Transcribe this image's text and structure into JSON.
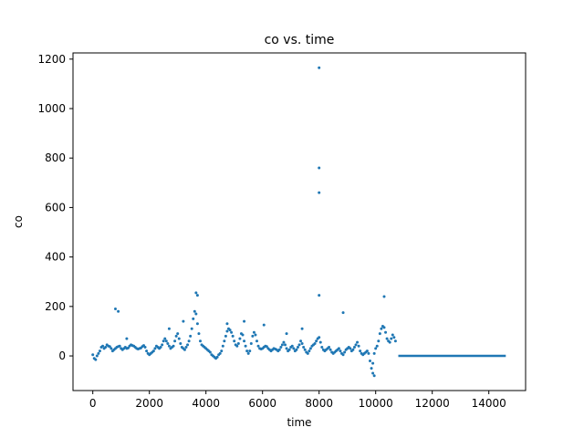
{
  "chart_data": {
    "type": "scatter",
    "title": "co vs. time",
    "xlabel": "time",
    "ylabel": "co",
    "xlim": [
      -700,
      15300
    ],
    "ylim": [
      -140,
      1225
    ],
    "x_ticks": [
      0,
      2000,
      4000,
      6000,
      8000,
      10000,
      12000,
      14000
    ],
    "y_ticks": [
      0,
      200,
      400,
      600,
      800,
      1000,
      1200
    ],
    "grid": false,
    "legend": "none",
    "marker_color": "#1f77b4",
    "series": [
      {
        "values": [
          [
            0,
            5
          ],
          [
            50,
            -10
          ],
          [
            100,
            -15
          ],
          [
            150,
            0
          ],
          [
            200,
            10
          ],
          [
            250,
            20
          ],
          [
            300,
            35
          ],
          [
            350,
            40
          ],
          [
            400,
            30
          ],
          [
            450,
            35
          ],
          [
            500,
            45
          ],
          [
            550,
            40
          ],
          [
            600,
            38
          ],
          [
            650,
            30
          ],
          [
            700,
            20
          ],
          [
            750,
            25
          ],
          [
            800,
            30
          ],
          [
            850,
            35
          ],
          [
            900,
            38
          ],
          [
            950,
            40
          ],
          [
            1000,
            30
          ],
          [
            1050,
            25
          ],
          [
            1100,
            30
          ],
          [
            1150,
            35
          ],
          [
            1200,
            30
          ],
          [
            1250,
            32
          ],
          [
            1300,
            40
          ],
          [
            1350,
            45
          ],
          [
            1400,
            42
          ],
          [
            1450,
            40
          ],
          [
            1500,
            35
          ],
          [
            1550,
            30
          ],
          [
            1600,
            28
          ],
          [
            1650,
            30
          ],
          [
            1700,
            32
          ],
          [
            1750,
            38
          ],
          [
            1800,
            42
          ],
          [
            1850,
            35
          ],
          [
            1900,
            20
          ],
          [
            1950,
            10
          ],
          [
            2000,
            5
          ],
          [
            2050,
            10
          ],
          [
            2100,
            15
          ],
          [
            2150,
            20
          ],
          [
            2200,
            30
          ],
          [
            2250,
            40
          ],
          [
            2300,
            35
          ],
          [
            2350,
            30
          ],
          [
            2400,
            35
          ],
          [
            2450,
            45
          ],
          [
            2500,
            60
          ],
          [
            2550,
            70
          ],
          [
            2600,
            60
          ],
          [
            2650,
            50
          ],
          [
            2700,
            40
          ],
          [
            2750,
            30
          ],
          [
            2800,
            35
          ],
          [
            2850,
            40
          ],
          [
            2900,
            60
          ],
          [
            2950,
            80
          ],
          [
            3000,
            90
          ],
          [
            3050,
            70
          ],
          [
            3100,
            50
          ],
          [
            3150,
            35
          ],
          [
            3200,
            30
          ],
          [
            3250,
            25
          ],
          [
            3300,
            35
          ],
          [
            3350,
            45
          ],
          [
            3400,
            60
          ],
          [
            3450,
            80
          ],
          [
            3500,
            110
          ],
          [
            3550,
            150
          ],
          [
            3600,
            180
          ],
          [
            3650,
            170
          ],
          [
            3700,
            130
          ],
          [
            3750,
            90
          ],
          [
            3800,
            60
          ],
          [
            3850,
            45
          ],
          [
            3900,
            40
          ],
          [
            3950,
            35
          ],
          [
            4000,
            30
          ],
          [
            4050,
            25
          ],
          [
            4100,
            20
          ],
          [
            4150,
            15
          ],
          [
            4200,
            5
          ],
          [
            4250,
            0
          ],
          [
            4300,
            -5
          ],
          [
            4350,
            -10
          ],
          [
            4400,
            -5
          ],
          [
            4450,
            5
          ],
          [
            4500,
            10
          ],
          [
            4550,
            20
          ],
          [
            4600,
            40
          ],
          [
            4650,
            60
          ],
          [
            4700,
            80
          ],
          [
            4750,
            100
          ],
          [
            4800,
            110
          ],
          [
            4850,
            105
          ],
          [
            4900,
            95
          ],
          [
            4950,
            80
          ],
          [
            5000,
            60
          ],
          [
            5050,
            45
          ],
          [
            5100,
            40
          ],
          [
            5150,
            50
          ],
          [
            5200,
            70
          ],
          [
            5250,
            90
          ],
          [
            5300,
            85
          ],
          [
            5350,
            60
          ],
          [
            5400,
            40
          ],
          [
            5450,
            20
          ],
          [
            5500,
            10
          ],
          [
            5550,
            20
          ],
          [
            5600,
            50
          ],
          [
            5650,
            80
          ],
          [
            5700,
            95
          ],
          [
            5750,
            85
          ],
          [
            5800,
            60
          ],
          [
            5850,
            40
          ],
          [
            5900,
            30
          ],
          [
            5950,
            28
          ],
          [
            6000,
            30
          ],
          [
            6050,
            35
          ],
          [
            6100,
            40
          ],
          [
            6150,
            38
          ],
          [
            6200,
            30
          ],
          [
            6250,
            25
          ],
          [
            6300,
            20
          ],
          [
            6350,
            25
          ],
          [
            6400,
            30
          ],
          [
            6450,
            28
          ],
          [
            6500,
            25
          ],
          [
            6550,
            20
          ],
          [
            6600,
            25
          ],
          [
            6650,
            35
          ],
          [
            6700,
            45
          ],
          [
            6750,
            55
          ],
          [
            6800,
            45
          ],
          [
            6850,
            30
          ],
          [
            6900,
            20
          ],
          [
            6950,
            25
          ],
          [
            7000,
            35
          ],
          [
            7050,
            40
          ],
          [
            7100,
            30
          ],
          [
            7150,
            20
          ],
          [
            7200,
            25
          ],
          [
            7250,
            35
          ],
          [
            7300,
            45
          ],
          [
            7350,
            60
          ],
          [
            7400,
            50
          ],
          [
            7450,
            35
          ],
          [
            7500,
            25
          ],
          [
            7550,
            15
          ],
          [
            7600,
            10
          ],
          [
            7650,
            20
          ],
          [
            7700,
            30
          ],
          [
            7750,
            40
          ],
          [
            7800,
            45
          ],
          [
            7850,
            50
          ],
          [
            7900,
            60
          ],
          [
            7950,
            70
          ],
          [
            8000,
            75
          ],
          [
            8050,
            55
          ],
          [
            8100,
            35
          ],
          [
            8150,
            25
          ],
          [
            8200,
            20
          ],
          [
            8250,
            25
          ],
          [
            8300,
            30
          ],
          [
            8350,
            35
          ],
          [
            8400,
            25
          ],
          [
            8450,
            15
          ],
          [
            8500,
            10
          ],
          [
            8550,
            15
          ],
          [
            8600,
            20
          ],
          [
            8650,
            25
          ],
          [
            8700,
            30
          ],
          [
            8750,
            20
          ],
          [
            8800,
            10
          ],
          [
            8850,
            5
          ],
          [
            8900,
            15
          ],
          [
            8950,
            25
          ],
          [
            9000,
            30
          ],
          [
            9050,
            35
          ],
          [
            9100,
            30
          ],
          [
            9150,
            20
          ],
          [
            9200,
            25
          ],
          [
            9250,
            35
          ],
          [
            9300,
            45
          ],
          [
            9350,
            55
          ],
          [
            9400,
            40
          ],
          [
            9450,
            20
          ],
          [
            9500,
            10
          ],
          [
            9550,
            5
          ],
          [
            9600,
            10
          ],
          [
            9650,
            15
          ],
          [
            9700,
            20
          ],
          [
            9750,
            10
          ],
          [
            9800,
            -20
          ],
          [
            9850,
            -50
          ],
          [
            9900,
            -30
          ],
          [
            9950,
            10
          ],
          [
            10000,
            30
          ],
          [
            10050,
            40
          ],
          [
            10100,
            60
          ],
          [
            10150,
            90
          ],
          [
            10200,
            110
          ],
          [
            10250,
            120
          ],
          [
            10300,
            115
          ],
          [
            10350,
            95
          ],
          [
            10400,
            70
          ],
          [
            10450,
            60
          ],
          [
            10500,
            55
          ],
          [
            10550,
            70
          ],
          [
            10600,
            85
          ],
          [
            10650,
            75
          ],
          [
            10700,
            60
          ],
          [
            800,
            190
          ],
          [
            900,
            180
          ],
          [
            1200,
            70
          ],
          [
            2700,
            110
          ],
          [
            3200,
            140
          ],
          [
            3650,
            255
          ],
          [
            3700,
            245
          ],
          [
            4750,
            130
          ],
          [
            5350,
            140
          ],
          [
            6050,
            125
          ],
          [
            6850,
            90
          ],
          [
            7400,
            110
          ],
          [
            8000,
            1165
          ],
          [
            8000,
            760
          ],
          [
            8000,
            660
          ],
          [
            8000,
            245
          ],
          [
            8850,
            175
          ],
          [
            10300,
            240
          ],
          [
            9900,
            -70
          ],
          [
            9950,
            -80
          ]
        ]
      },
      {
        "line_segment": {
          "x": [
            10800,
            14600
          ],
          "y": [
            0,
            0
          ]
        }
      }
    ]
  }
}
